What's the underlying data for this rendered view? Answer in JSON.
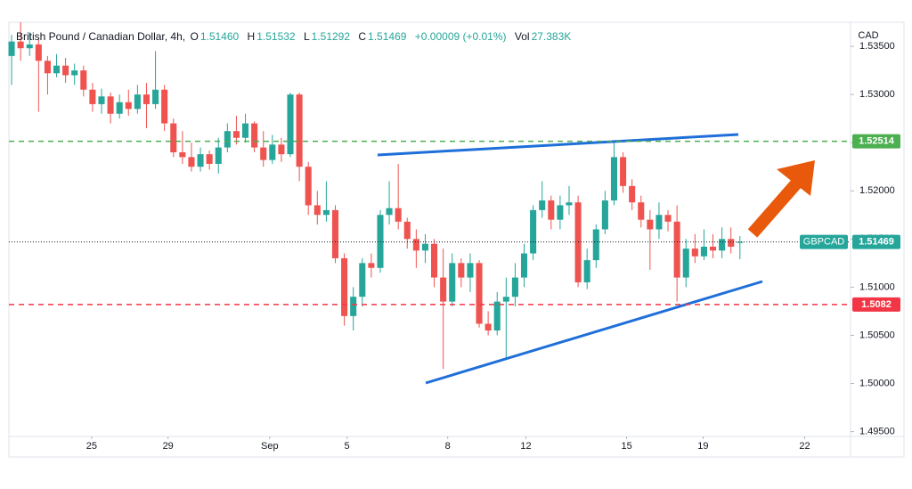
{
  "chart_data": {
    "type": "candlestick",
    "title": "British Pound / Canadian Dollar, 4h,",
    "legend_items": [
      {
        "label": "O",
        "value": "1.51460"
      },
      {
        "label": "H",
        "value": "1.51532"
      },
      {
        "label": "L",
        "value": "1.51292"
      },
      {
        "label": "C",
        "value": "1.51469"
      }
    ],
    "change": "+0.00009 (+0.01%)",
    "volume_label": "Vol",
    "volume": "27.383K",
    "currency": "CAD",
    "up_color": "#26a69a",
    "down_color": "#ef5350",
    "x": [
      0,
      1,
      2,
      3,
      4,
      5,
      6,
      7,
      8,
      9,
      10,
      11,
      12,
      13,
      14,
      15,
      16,
      17,
      18,
      19,
      20,
      21,
      22,
      23,
      24,
      25,
      26,
      27,
      28,
      29,
      30,
      31,
      32,
      33,
      34,
      35,
      36,
      37,
      38,
      39,
      40,
      41,
      42,
      43,
      44,
      45,
      46,
      47,
      48,
      49,
      50,
      51,
      52,
      53,
      54,
      55,
      56,
      57,
      58,
      59,
      60,
      61,
      62,
      63,
      64,
      65,
      66,
      67,
      68,
      69,
      70,
      71,
      72,
      73,
      74,
      75,
      76,
      77,
      78,
      79,
      80,
      81
    ],
    "open": [
      1.534,
      1.5355,
      1.5348,
      1.5352,
      1.5335,
      1.5322,
      1.533,
      1.532,
      1.5325,
      1.5305,
      1.529,
      1.5298,
      1.528,
      1.5292,
      1.5285,
      1.53,
      1.529,
      1.5305,
      1.527,
      1.524,
      1.5235,
      1.5225,
      1.5238,
      1.5228,
      1.5245,
      1.5262,
      1.5255,
      1.527,
      1.5245,
      1.5232,
      1.5248,
      1.5238,
      1.53,
      1.5225,
      1.5185,
      1.5175,
      1.518,
      1.513,
      1.507,
      1.509,
      1.5125,
      1.512,
      1.5175,
      1.5182,
      1.5168,
      1.515,
      1.5138,
      1.5145,
      1.511,
      1.5085,
      1.5125,
      1.511,
      1.5125,
      1.5062,
      1.5055,
      1.5085,
      1.509,
      1.511,
      1.5135,
      1.518,
      1.519,
      1.517,
      1.5185,
      1.5188,
      1.5105,
      1.5128,
      1.516,
      1.519,
      1.5235,
      1.5205,
      1.5188,
      1.517,
      1.516,
      1.5175,
      1.5168,
      1.511,
      1.514,
      1.5132,
      1.5142,
      1.5138,
      1.515,
      1.5146
    ],
    "high": [
      1.5362,
      1.5375,
      1.5365,
      1.5358,
      1.534,
      1.5342,
      1.5338,
      1.5332,
      1.533,
      1.5312,
      1.5306,
      1.5302,
      1.53,
      1.5305,
      1.531,
      1.5312,
      1.5345,
      1.531,
      1.5275,
      1.5262,
      1.525,
      1.5245,
      1.5242,
      1.5255,
      1.527,
      1.5278,
      1.528,
      1.5272,
      1.5262,
      1.5258,
      1.5255,
      1.5302,
      1.5302,
      1.523,
      1.52,
      1.521,
      1.5185,
      1.5135,
      1.51,
      1.513,
      1.5135,
      1.518,
      1.521,
      1.5228,
      1.5172,
      1.516,
      1.5155,
      1.515,
      1.514,
      1.5135,
      1.513,
      1.5135,
      1.5128,
      1.5075,
      1.5095,
      1.511,
      1.5125,
      1.5145,
      1.5185,
      1.521,
      1.5195,
      1.5195,
      1.5205,
      1.5195,
      1.514,
      1.5165,
      1.52,
      1.525,
      1.524,
      1.5212,
      1.5195,
      1.518,
      1.5188,
      1.518,
      1.5185,
      1.515,
      1.5155,
      1.516,
      1.5155,
      1.5162,
      1.5162,
      1.5153
    ],
    "low": [
      1.531,
      1.5335,
      1.534,
      1.5282,
      1.53,
      1.5318,
      1.5312,
      1.531,
      1.5298,
      1.5282,
      1.528,
      1.527,
      1.5275,
      1.5278,
      1.528,
      1.5265,
      1.5285,
      1.5262,
      1.5235,
      1.5228,
      1.522,
      1.522,
      1.5222,
      1.5218,
      1.524,
      1.5248,
      1.525,
      1.524,
      1.5225,
      1.5228,
      1.523,
      1.5235,
      1.521,
      1.5175,
      1.5165,
      1.5168,
      1.5125,
      1.506,
      1.5055,
      1.508,
      1.511,
      1.5115,
      1.5165,
      1.516,
      1.514,
      1.512,
      1.5125,
      1.51,
      1.5015,
      1.508,
      1.51,
      1.5095,
      1.5058,
      1.505,
      1.505,
      1.5025,
      1.508,
      1.51,
      1.5128,
      1.5172,
      1.516,
      1.516,
      1.5175,
      1.51,
      1.5098,
      1.512,
      1.5155,
      1.5185,
      1.5198,
      1.518,
      1.5162,
      1.5118,
      1.515,
      1.5158,
      1.5085,
      1.51,
      1.5125,
      1.5128,
      1.513,
      1.513,
      1.5135,
      1.5129
    ],
    "close": [
      1.5355,
      1.5348,
      1.5352,
      1.5335,
      1.5322,
      1.533,
      1.532,
      1.5325,
      1.5305,
      1.529,
      1.5298,
      1.528,
      1.5292,
      1.5285,
      1.53,
      1.529,
      1.5305,
      1.527,
      1.524,
      1.5235,
      1.5225,
      1.5238,
      1.5228,
      1.5245,
      1.5262,
      1.5255,
      1.527,
      1.5245,
      1.5232,
      1.5248,
      1.5238,
      1.53,
      1.5225,
      1.5185,
      1.5175,
      1.518,
      1.513,
      1.507,
      1.509,
      1.5125,
      1.512,
      1.5175,
      1.5182,
      1.5168,
      1.515,
      1.5138,
      1.5145,
      1.511,
      1.5085,
      1.5125,
      1.511,
      1.5125,
      1.5062,
      1.5055,
      1.5085,
      1.509,
      1.511,
      1.5135,
      1.518,
      1.519,
      1.517,
      1.5185,
      1.5188,
      1.5105,
      1.5128,
      1.516,
      1.519,
      1.5235,
      1.5205,
      1.5188,
      1.517,
      1.516,
      1.5175,
      1.5168,
      1.511,
      1.514,
      1.5132,
      1.5142,
      1.5138,
      1.515,
      1.5142,
      1.5147
    ],
    "xlim": [
      -0.3,
      93.3
    ],
    "xticks": [
      {
        "value": 8.9,
        "label": "25"
      },
      {
        "value": 17.4,
        "label": "29"
      },
      {
        "value": 28.7,
        "label": "Sep"
      },
      {
        "value": 37.3,
        "label": "5"
      },
      {
        "value": 48.5,
        "label": "8"
      },
      {
        "value": 57.2,
        "label": "12"
      },
      {
        "value": 68.4,
        "label": "15"
      },
      {
        "value": 76.9,
        "label": "19"
      },
      {
        "value": 88.2,
        "label": "22"
      }
    ],
    "ylim": [
      1.4945,
      1.5375
    ],
    "yticks": [
      {
        "value": 1.495,
        "label": "1.49500"
      },
      {
        "value": 1.5,
        "label": "1.50000"
      },
      {
        "value": 1.505,
        "label": "1.50500"
      },
      {
        "value": 1.51,
        "label": "1.51000"
      },
      {
        "value": 1.515,
        "label": "1.51500"
      },
      {
        "value": 1.52,
        "label": "1.52000"
      },
      {
        "value": 1.525,
        "label": "1.52500"
      },
      {
        "value": 1.53,
        "label": "1.53000"
      },
      {
        "value": 1.535,
        "label": "1.53500"
      }
    ],
    "levels": [
      {
        "value": 1.52514,
        "color": "#4caf50"
      },
      {
        "value": 1.5082,
        "color": "#f23645"
      }
    ],
    "current_price": {
      "name": "GBPCAD",
      "value": 1.51469,
      "color": "#26a69a"
    }
  }
}
